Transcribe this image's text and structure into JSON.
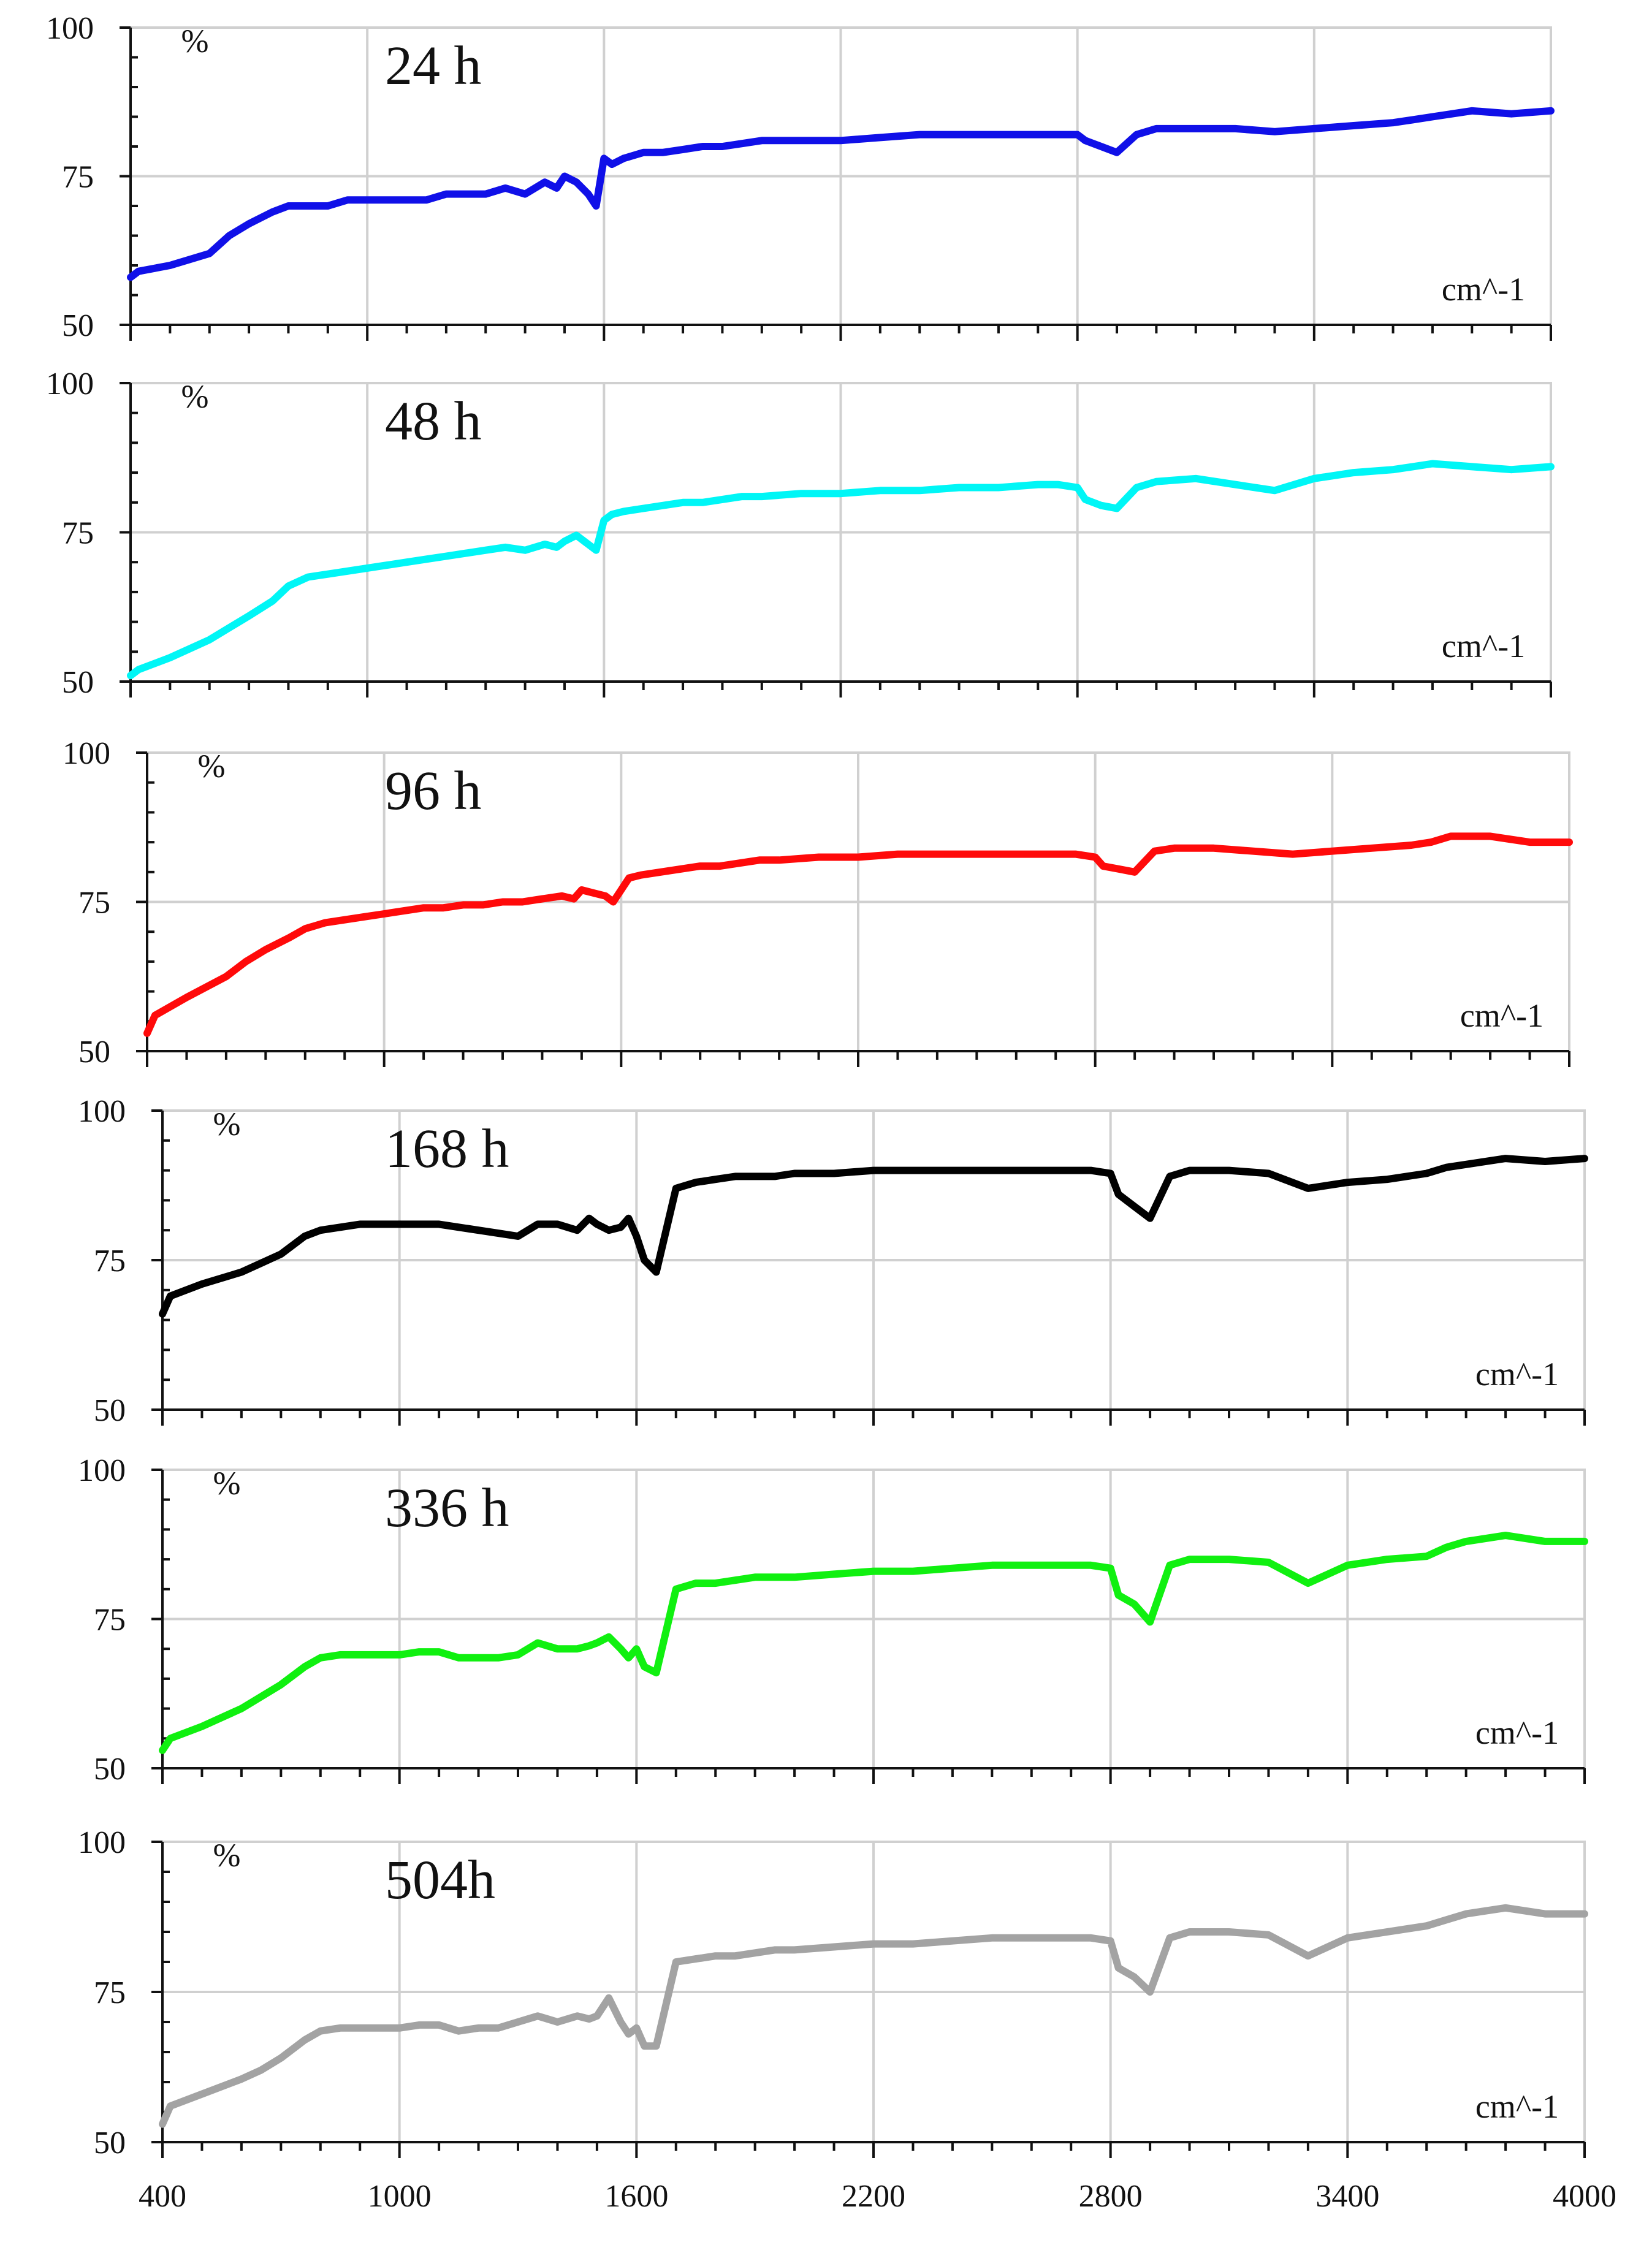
{
  "figure": {
    "x_ticks": [
      "400",
      "1000",
      "1600",
      "2200",
      "2800",
      "3400",
      "4000"
    ],
    "y_unit": "%",
    "x_unit": "cm^-1"
  },
  "chart_data": [
    {
      "type": "line",
      "title": "24 h",
      "ylabel": "%",
      "xlabel": "cm^-1",
      "xlim": [
        400,
        4000
      ],
      "ylim": [
        50,
        100
      ],
      "yticks": [
        50,
        75,
        100
      ],
      "color": "#1010e8",
      "series": [
        {
          "name": "24 h",
          "x": [
            400,
            420,
            500,
            600,
            650,
            700,
            760,
            800,
            850,
            900,
            950,
            1000,
            1050,
            1100,
            1150,
            1200,
            1250,
            1300,
            1350,
            1400,
            1450,
            1480,
            1500,
            1530,
            1560,
            1580,
            1600,
            1620,
            1650,
            1700,
            1750,
            1800,
            1850,
            1900,
            1950,
            2000,
            2100,
            2200,
            2300,
            2400,
            2500,
            2600,
            2700,
            2750,
            2800,
            2820,
            2860,
            2900,
            2950,
            3000,
            3100,
            3200,
            3300,
            3400,
            3500,
            3600,
            3650,
            3700,
            3800,
            3900,
            4000
          ],
          "y": [
            58,
            59,
            60,
            62,
            65,
            67,
            69,
            70,
            70,
            70,
            71,
            71,
            71,
            71,
            71,
            72,
            72,
            72,
            73,
            72,
            74,
            73,
            75,
            74,
            72,
            70,
            78,
            77,
            78,
            79,
            79,
            79.5,
            80,
            80,
            80.5,
            81,
            81,
            81,
            81.5,
            82,
            82,
            82,
            82,
            82,
            82,
            81,
            80,
            79,
            82,
            83,
            83,
            83,
            82.5,
            83,
            83.5,
            84,
            84.5,
            85,
            86,
            85.5,
            86
          ]
        }
      ]
    },
    {
      "type": "line",
      "title": "48 h",
      "ylabel": "%",
      "xlabel": "cm^-1",
      "xlim": [
        400,
        4000
      ],
      "ylim": [
        50,
        100
      ],
      "yticks": [
        50,
        75,
        100
      ],
      "color": "#00f6f6",
      "series": [
        {
          "name": "48 h",
          "x": [
            400,
            420,
            500,
            600,
            650,
            700,
            760,
            800,
            850,
            900,
            950,
            1000,
            1050,
            1100,
            1150,
            1200,
            1250,
            1300,
            1350,
            1400,
            1450,
            1480,
            1500,
            1530,
            1560,
            1580,
            1600,
            1620,
            1650,
            1700,
            1750,
            1800,
            1850,
            1900,
            1950,
            2000,
            2100,
            2200,
            2300,
            2400,
            2500,
            2600,
            2700,
            2750,
            2800,
            2820,
            2860,
            2900,
            2950,
            3000,
            3100,
            3200,
            3300,
            3400,
            3500,
            3600,
            3650,
            3700,
            3800,
            3900,
            4000
          ],
          "y": [
            51,
            52,
            54,
            57,
            59,
            61,
            63.5,
            66,
            67.5,
            68,
            68.5,
            69,
            69.5,
            70,
            70.5,
            71,
            71.5,
            72,
            72.5,
            72,
            73,
            72.5,
            73.5,
            74.5,
            73,
            72,
            77,
            78,
            78.5,
            79,
            79.5,
            80,
            80,
            80.5,
            81,
            81,
            81.5,
            81.5,
            82,
            82,
            82.5,
            82.5,
            83,
            83,
            82.5,
            80.5,
            79.5,
            79,
            82.5,
            83.5,
            84,
            83,
            82,
            84,
            85,
            85.5,
            86,
            86.5,
            86,
            85.5,
            86
          ]
        }
      ]
    },
    {
      "type": "line",
      "title": "96 h",
      "ylabel": "%",
      "xlabel": "cm^-1",
      "xlim": [
        400,
        4000
      ],
      "ylim": [
        50,
        100
      ],
      "yticks": [
        50,
        75,
        100
      ],
      "color": "#ff0a0a",
      "series": [
        {
          "name": "96 h",
          "x": [
            400,
            420,
            500,
            600,
            650,
            700,
            760,
            800,
            850,
            900,
            950,
            1000,
            1050,
            1100,
            1150,
            1200,
            1250,
            1300,
            1350,
            1400,
            1450,
            1480,
            1500,
            1530,
            1560,
            1580,
            1600,
            1620,
            1650,
            1700,
            1750,
            1800,
            1850,
            1900,
            1950,
            2000,
            2100,
            2200,
            2300,
            2400,
            2500,
            2600,
            2700,
            2750,
            2800,
            2820,
            2860,
            2900,
            2950,
            3000,
            3100,
            3200,
            3300,
            3400,
            3500,
            3600,
            3650,
            3700,
            3800,
            3900,
            4000
          ],
          "y": [
            53,
            56,
            59,
            62.5,
            65,
            67,
            69,
            70.5,
            71.5,
            72,
            72.5,
            73,
            73.5,
            74,
            74,
            74.5,
            74.5,
            75,
            75,
            75.5,
            76,
            75.5,
            77,
            76.5,
            76,
            75,
            77,
            79,
            79.5,
            80,
            80.5,
            81,
            81,
            81.5,
            82,
            82,
            82.5,
            82.5,
            83,
            83,
            83,
            83,
            83,
            83,
            82.5,
            81,
            80.5,
            80,
            83.5,
            84,
            84,
            83.5,
            83,
            83.5,
            84,
            84.5,
            85,
            86,
            86,
            85,
            85
          ]
        }
      ]
    },
    {
      "type": "line",
      "title": "168 h",
      "ylabel": "%",
      "xlabel": "cm^-1",
      "xlim": [
        400,
        4000
      ],
      "ylim": [
        50,
        100
      ],
      "yticks": [
        50,
        75,
        100
      ],
      "color": "#000000",
      "series": [
        {
          "name": "168 h",
          "x": [
            400,
            420,
            500,
            600,
            650,
            700,
            760,
            800,
            850,
            900,
            950,
            1000,
            1050,
            1100,
            1150,
            1200,
            1250,
            1300,
            1350,
            1400,
            1450,
            1480,
            1500,
            1530,
            1560,
            1580,
            1600,
            1620,
            1650,
            1700,
            1750,
            1800,
            1850,
            1900,
            1950,
            2000,
            2100,
            2200,
            2300,
            2400,
            2500,
            2600,
            2700,
            2750,
            2800,
            2820,
            2860,
            2900,
            2950,
            3000,
            3100,
            3200,
            3300,
            3400,
            3500,
            3600,
            3650,
            3700,
            3800,
            3900,
            4000
          ],
          "y": [
            66,
            69,
            71,
            73,
            74.5,
            76,
            79,
            80,
            80.5,
            81,
            81,
            81,
            81,
            81,
            80.5,
            80,
            79.5,
            79,
            81,
            81,
            80,
            82,
            81,
            80,
            80.5,
            82,
            79,
            75,
            73,
            87,
            88,
            88.5,
            89,
            89,
            89,
            89.5,
            89.5,
            90,
            90,
            90,
            90,
            90,
            90,
            90,
            89.5,
            86,
            84,
            82,
            89,
            90,
            90,
            89.5,
            87,
            88,
            88.5,
            89.5,
            90.5,
            91,
            92,
            91.5,
            92
          ]
        }
      ]
    },
    {
      "type": "line",
      "title": "336 h",
      "ylabel": "%",
      "xlabel": "cm^-1",
      "xlim": [
        400,
        4000
      ],
      "ylim": [
        50,
        100
      ],
      "yticks": [
        50,
        75,
        100
      ],
      "color": "#10f010",
      "series": [
        {
          "name": "336 h",
          "x": [
            400,
            420,
            500,
            600,
            650,
            700,
            760,
            800,
            850,
            900,
            950,
            1000,
            1050,
            1100,
            1150,
            1200,
            1250,
            1300,
            1350,
            1400,
            1450,
            1480,
            1500,
            1530,
            1560,
            1580,
            1600,
            1620,
            1650,
            1700,
            1750,
            1800,
            1850,
            1900,
            1950,
            2000,
            2100,
            2200,
            2300,
            2400,
            2500,
            2600,
            2700,
            2750,
            2800,
            2820,
            2860,
            2900,
            2950,
            3000,
            3100,
            3200,
            3300,
            3400,
            3500,
            3600,
            3650,
            3700,
            3800,
            3900,
            4000
          ],
          "y": [
            53,
            55,
            57,
            60,
            62,
            64,
            67,
            68.5,
            69,
            69,
            69,
            69,
            69.5,
            69.5,
            68.5,
            68.5,
            68.5,
            69,
            71,
            70,
            70,
            70.5,
            71,
            72,
            70,
            68.5,
            70,
            67,
            66,
            80,
            81,
            81,
            81.5,
            82,
            82,
            82,
            82.5,
            83,
            83,
            83.5,
            84,
            84,
            84,
            84,
            83.5,
            79,
            77.5,
            74.5,
            84,
            85,
            85,
            84.5,
            81,
            84,
            85,
            85.5,
            87,
            88,
            89,
            88,
            88
          ]
        }
      ]
    },
    {
      "type": "line",
      "title": "504h",
      "ylabel": "%",
      "xlabel": "cm^-1",
      "xlim": [
        400,
        4000
      ],
      "ylim": [
        50,
        100
      ],
      "yticks": [
        50,
        75,
        100
      ],
      "color": "#a3a3a3",
      "series": [
        {
          "name": "504h",
          "x": [
            400,
            420,
            500,
            600,
            650,
            700,
            760,
            800,
            850,
            900,
            950,
            1000,
            1050,
            1100,
            1150,
            1200,
            1250,
            1300,
            1350,
            1400,
            1450,
            1480,
            1500,
            1530,
            1560,
            1580,
            1600,
            1620,
            1650,
            1700,
            1750,
            1800,
            1850,
            1900,
            1950,
            2000,
            2100,
            2200,
            2300,
            2400,
            2500,
            2600,
            2700,
            2750,
            2800,
            2820,
            2860,
            2900,
            2950,
            3000,
            3100,
            3200,
            3300,
            3400,
            3500,
            3600,
            3650,
            3700,
            3800,
            3900,
            4000
          ],
          "y": [
            53,
            56,
            58,
            60.5,
            62,
            64,
            67,
            68.5,
            69,
            69,
            69,
            69,
            69.5,
            69.5,
            68.5,
            69,
            69,
            70,
            71,
            70,
            71,
            70.5,
            71,
            74,
            70,
            68,
            69,
            66,
            66,
            80,
            80.5,
            81,
            81,
            81.5,
            82,
            82,
            82.5,
            83,
            83,
            83.5,
            84,
            84,
            84,
            84,
            83.5,
            79,
            77.5,
            75,
            84,
            85,
            85,
            84.5,
            81,
            84,
            85,
            86,
            87,
            88,
            89,
            88,
            88
          ]
        }
      ]
    }
  ]
}
